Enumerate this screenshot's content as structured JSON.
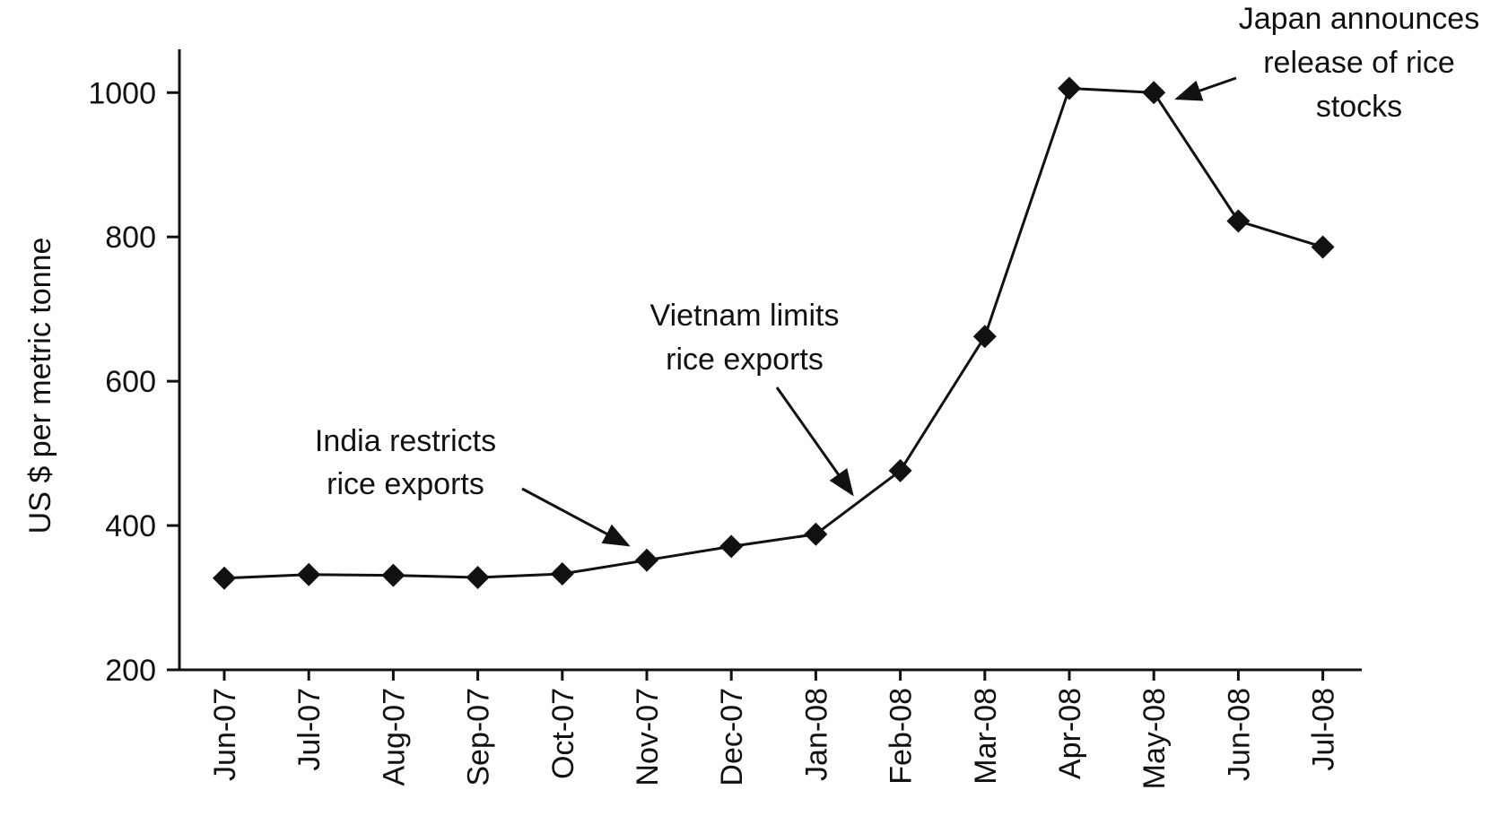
{
  "chart_data": {
    "type": "line",
    "title": "",
    "xlabel": "",
    "ylabel": "US $ per metric tonne",
    "ylim": [
      200,
      1060
    ],
    "yticks": [
      200,
      400,
      600,
      800,
      1000
    ],
    "grid": false,
    "legend": "none",
    "marker": "diamond",
    "color": "#111111",
    "categories": [
      "Jun-07",
      "Jul-07",
      "Aug-07",
      "Sep-07",
      "Oct-07",
      "Nov-07",
      "Dec-07",
      "Jan-08",
      "Feb-08",
      "Mar-08",
      "Apr-08",
      "May-08",
      "Jun-08",
      "Jul-08"
    ],
    "values": [
      327,
      332,
      331,
      328,
      333,
      352,
      371,
      388,
      476,
      662,
      1006,
      1000,
      822,
      786
    ],
    "annotations": [
      {
        "lines": [
          "India restricts",
          "rice exports"
        ],
        "target_category": "Nov-07"
      },
      {
        "lines": [
          "Vietnam limits",
          "rice exports"
        ],
        "target_category": "Feb-08"
      },
      {
        "lines": [
          "Japan announces",
          "release of rice",
          "stocks"
        ],
        "target_category": "May-08"
      }
    ]
  }
}
